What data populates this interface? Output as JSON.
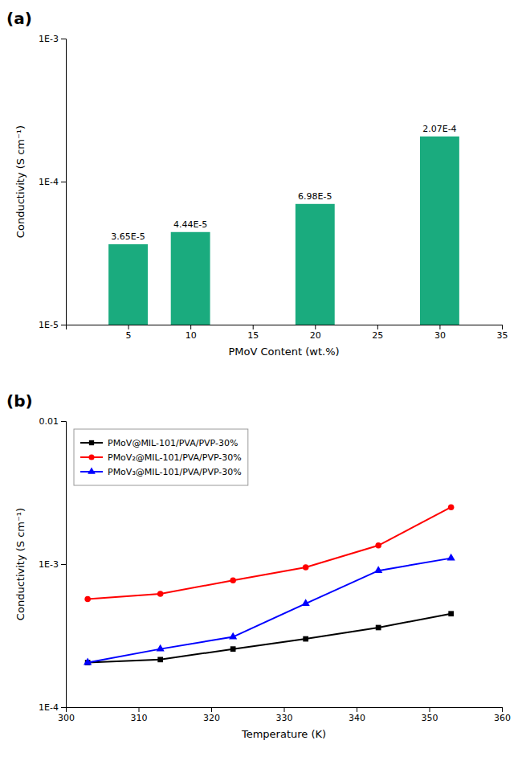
{
  "chart_data": [
    {
      "type": "bar",
      "title": "(a)",
      "x_label": "PMoV Content (wt.%)",
      "y_label": "Conductivity (S cm⁻¹)",
      "x": [
        5,
        10,
        20,
        30
      ],
      "values": [
        3.65e-05,
        4.44e-05,
        6.98e-05,
        0.000207
      ],
      "value_labels": [
        "3.65E-5",
        "4.44E-5",
        "6.98E-5",
        "2.07E-4"
      ],
      "data_labels": true,
      "color": "#1aab7e",
      "log": "y",
      "xlim": [
        0,
        35
      ],
      "xticks": [
        5,
        10,
        15,
        20,
        25,
        30,
        35
      ],
      "ylim": [
        1e-05,
        0.001
      ],
      "yticks": [
        {
          "value": 1e-05,
          "label": "1E-5"
        },
        {
          "value": 0.0001,
          "label": "1E-4"
        },
        {
          "value": 0.001,
          "label": "1E-3"
        }
      ],
      "grid": false
    },
    {
      "type": "line",
      "title": "(b)",
      "x_label": "Temperature (K)",
      "y_label": "Conductivity (S cm⁻¹)",
      "x": [
        303,
        313,
        323,
        333,
        343,
        353
      ],
      "series": [
        {
          "name": "PMoV@MIL-101/PVA/PVP-30%",
          "color": "#000000",
          "marker": "square",
          "values": [
            0.000205,
            0.000215,
            0.000255,
            0.0003,
            0.00036,
            0.00045
          ]
        },
        {
          "name": "PMoV₂@MIL-101/PVA/PVP-30%",
          "color": "#ff0000",
          "marker": "circle",
          "values": [
            0.00057,
            0.00062,
            0.00077,
            0.00095,
            0.00135,
            0.0025
          ]
        },
        {
          "name": "PMoV₃@MIL-101/PVA/PVP-30%",
          "color": "#0000ff",
          "marker": "triangle",
          "values": [
            0.000205,
            0.000255,
            0.00031,
            0.00053,
            0.0009,
            0.0011
          ]
        }
      ],
      "log": "y",
      "legend": "upper left",
      "xlim": [
        300,
        360
      ],
      "xticks": [
        300,
        310,
        320,
        330,
        340,
        350,
        360
      ],
      "ylim": [
        0.0001,
        0.01
      ],
      "yticks": [
        {
          "value": 0.0001,
          "label": "1E-4"
        },
        {
          "value": 0.001,
          "label": "1E-3"
        },
        0.01
      ],
      "grid": false
    }
  ]
}
